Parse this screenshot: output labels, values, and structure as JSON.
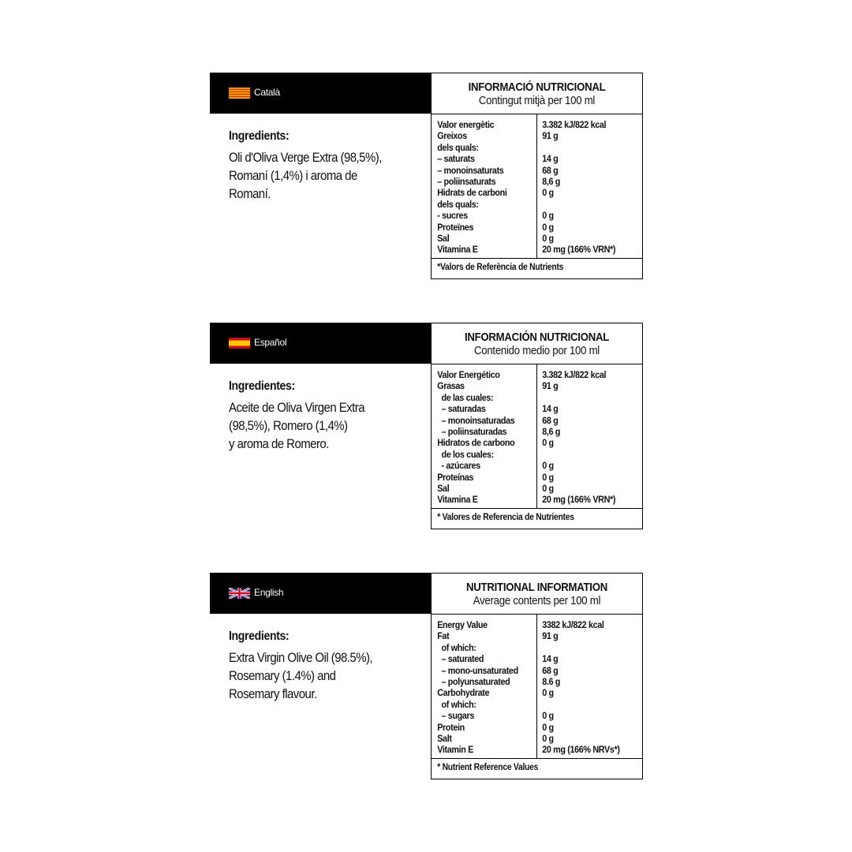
{
  "sections": [
    {
      "language": "Català",
      "flag_icon": "catalan-flag-icon",
      "ingredients_title": "Ingredients:",
      "ingredients_text": "Oli d'Oliva Verge Extra (98,5%),\nRomaní (1,4%) i aroma de\nRomaní.",
      "table_title": "INFORMACIÓ NUTRICIONAL",
      "table_subtitle": "Contingut mitjà per 100 ml",
      "rows": [
        [
          "Valor energètic",
          "3.382 kJ/822 kcal"
        ],
        [
          "Greixos",
          "91 g"
        ],
        [
          "dels quals:",
          ""
        ],
        [
          "– saturats",
          "14 g"
        ],
        [
          "– monoinsaturats",
          "68 g"
        ],
        [
          "– poliinsaturats",
          "8,6 g"
        ],
        [
          "Hidrats de carboni",
          "0 g"
        ],
        [
          "dels quals:",
          ""
        ],
        [
          "- sucres",
          "0 g"
        ],
        [
          "Proteïnes",
          "0 g"
        ],
        [
          "Sal",
          "0 g"
        ],
        [
          "Vitamina E",
          "20 mg (166% VRN*)"
        ]
      ],
      "footnote": "*Valors de Referència de Nutrients"
    },
    {
      "language": "Español",
      "flag_icon": "spanish-flag-icon",
      "ingredients_title": "Ingredientes:",
      "ingredients_text": "Aceite de Oliva Virgen Extra\n(98,5%), Romero (1,4%)\n y aroma de Romero.",
      "table_title": "INFORMACIÓN NUTRICIONAL",
      "table_subtitle": "Contenido medio por 100 ml",
      "rows": [
        [
          "Valor Energético",
          "3.382 kJ/822 kcal"
        ],
        [
          "Grasas",
          "91 g"
        ],
        [
          "  de las cuales:",
          ""
        ],
        [
          "  – saturadas",
          "14 g"
        ],
        [
          "  – monoinsaturadas",
          "68 g"
        ],
        [
          "  – poliinsaturadas",
          "8,6 g"
        ],
        [
          "Hidratos de carbono",
          "0 g"
        ],
        [
          "  de los cuales:",
          ""
        ],
        [
          "  - azúcares",
          "0 g"
        ],
        [
          "Proteínas",
          "0 g"
        ],
        [
          "Sal",
          "0 g"
        ],
        [
          "Vitamina E",
          "20 mg (166% VRN*)"
        ]
      ],
      "footnote": "* Valores de Referencia de Nutrientes"
    },
    {
      "language": "English",
      "flag_icon": "uk-flag-icon",
      "ingredients_title": "Ingredients:",
      "ingredients_text": "Extra Virgin Olive Oil (98.5%),\nRosemary (1.4%) and\nRosemary flavour.",
      "table_title": "NUTRITIONAL INFORMATION",
      "table_subtitle": "Average contents per 100 ml",
      "rows": [
        [
          "Energy Value",
          "3382 kJ/822 kcal"
        ],
        [
          "Fat",
          "91 g"
        ],
        [
          "  of which:",
          ""
        ],
        [
          "  – saturated",
          "14 g"
        ],
        [
          "  – mono-unsaturated",
          "68 g"
        ],
        [
          "  – polyunsaturated",
          "8.6 g"
        ],
        [
          "Carbohydrate",
          "0 g"
        ],
        [
          "  of which:",
          ""
        ],
        [
          "  – sugars",
          "0 g"
        ],
        [
          "Protein",
          "0 g"
        ],
        [
          "Salt",
          "0 g"
        ],
        [
          "Vitamin E",
          "20 mg (166% NRVs*)"
        ]
      ],
      "footnote": "* Nutrient Reference Values"
    }
  ]
}
